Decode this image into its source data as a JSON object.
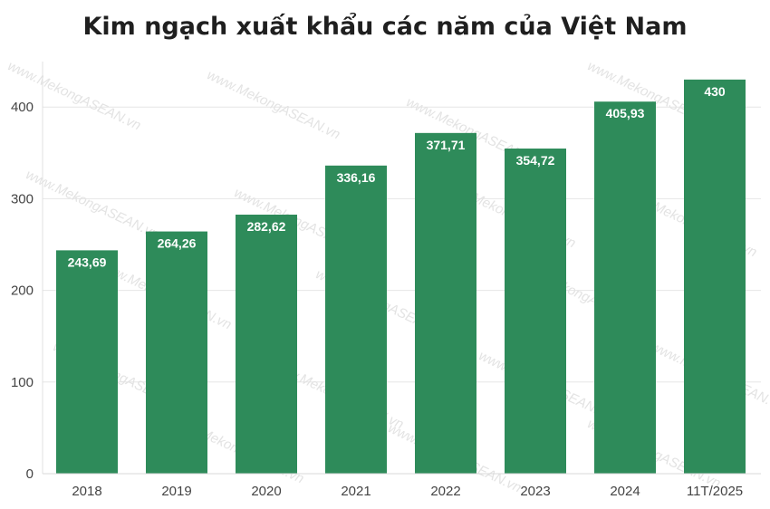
{
  "chart_data": {
    "type": "bar",
    "title": "Kim ngạch xuất khẩu các năm của Việt Nam",
    "xlabel": "",
    "ylabel": "",
    "categories": [
      "2018",
      "2019",
      "2020",
      "2021",
      "2022",
      "2023",
      "2024",
      "11T/2025"
    ],
    "values": [
      243.69,
      264.26,
      282.62,
      336.16,
      371.71,
      354.72,
      405.93,
      430
    ],
    "value_labels": [
      "243,69",
      "264,26",
      "282,62",
      "336,16",
      "371,71",
      "354,72",
      "405,93",
      "430"
    ],
    "ylim": [
      0,
      450
    ],
    "yticks": [
      0,
      100,
      200,
      300,
      400
    ],
    "grid": true,
    "legend": "none",
    "bar_color": "#2e8b5a"
  },
  "watermark": {
    "text": "www.MekongASEAN.vn"
  }
}
